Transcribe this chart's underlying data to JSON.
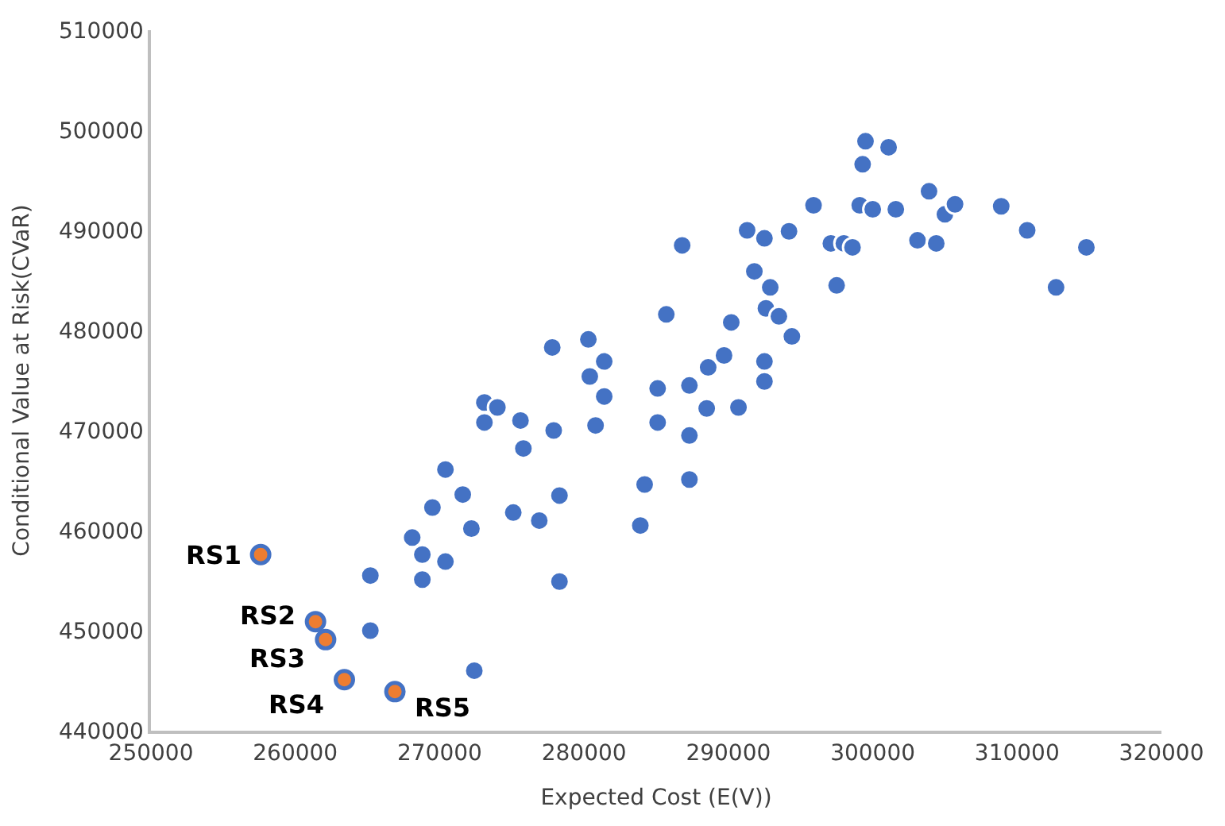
{
  "chart_data": {
    "type": "scatter",
    "xlabel": "Expected Cost (E(V))",
    "ylabel": "Conditional Value at Risk(CVaR)",
    "xlim": [
      250000,
      320000
    ],
    "xticks": [
      250000,
      260000,
      270000,
      280000,
      290000,
      300000,
      310000,
      320000
    ],
    "ylim": [
      440000,
      510000
    ],
    "yticks": [
      440000,
      450000,
      460000,
      470000,
      480000,
      490000,
      500000,
      510000
    ],
    "marker": "circle",
    "series": [
      {
        "color": "#4472c4",
        "x": [
          265200,
          265200,
          268100,
          268800,
          268800,
          269500,
          270400,
          270400,
          271600,
          272200,
          272400,
          273100,
          273100,
          274000,
          275100,
          275600,
          275800,
          276900,
          277800,
          277900,
          278300,
          278300,
          280300,
          280400,
          280800,
          281400,
          281400,
          283900,
          284200,
          285100,
          285100,
          285700,
          286800,
          287300,
          287300,
          287300,
          288500,
          288600,
          289700,
          290200,
          290700,
          291300,
          291800,
          292500,
          292500,
          292500,
          292600,
          292900,
          293500,
          294200,
          294400,
          295900,
          297100,
          297500,
          298000,
          298600,
          299100,
          299300,
          299500,
          300000,
          301100,
          301600,
          303100,
          303900,
          304400,
          305000,
          305700,
          308900,
          310700,
          312700,
          314800
        ],
        "values": [
          455500,
          450000,
          459300,
          457600,
          455100,
          462300,
          466100,
          456900,
          463600,
          460200,
          446000,
          472800,
          470800,
          472300,
          461800,
          471000,
          468200,
          461000,
          478300,
          470000,
          463500,
          454900,
          479100,
          475400,
          470500,
          476900,
          473400,
          460500,
          464600,
          474200,
          470800,
          481600,
          488500,
          474500,
          469500,
          465100,
          472200,
          476300,
          477500,
          480800,
          472300,
          490000,
          485900,
          489200,
          476900,
          474900,
          482200,
          484300,
          481400,
          489900,
          479400,
          492500,
          488700,
          484500,
          488700,
          488300,
          492500,
          496600,
          498900,
          492100,
          498300,
          492100,
          489000,
          493900,
          488700,
          491600,
          492600,
          492400,
          490000,
          484300,
          488300
        ]
      },
      {
        "color": "#ed7d31",
        "x": [
          257600,
          261400,
          262100,
          263400,
          266900
        ],
        "values": [
          457600,
          450900,
          449100,
          445100,
          443900
        ]
      }
    ],
    "annotations": [
      {
        "text": "RS1",
        "x": 257600,
        "y": 457600
      },
      {
        "text": "RS2",
        "x": 261400,
        "y": 450900
      },
      {
        "text": "RS3",
        "x": 262100,
        "y": 449100
      },
      {
        "text": "RS4",
        "x": 263400,
        "y": 445100
      },
      {
        "text": "RS5",
        "x": 266900,
        "y": 443900
      }
    ]
  }
}
